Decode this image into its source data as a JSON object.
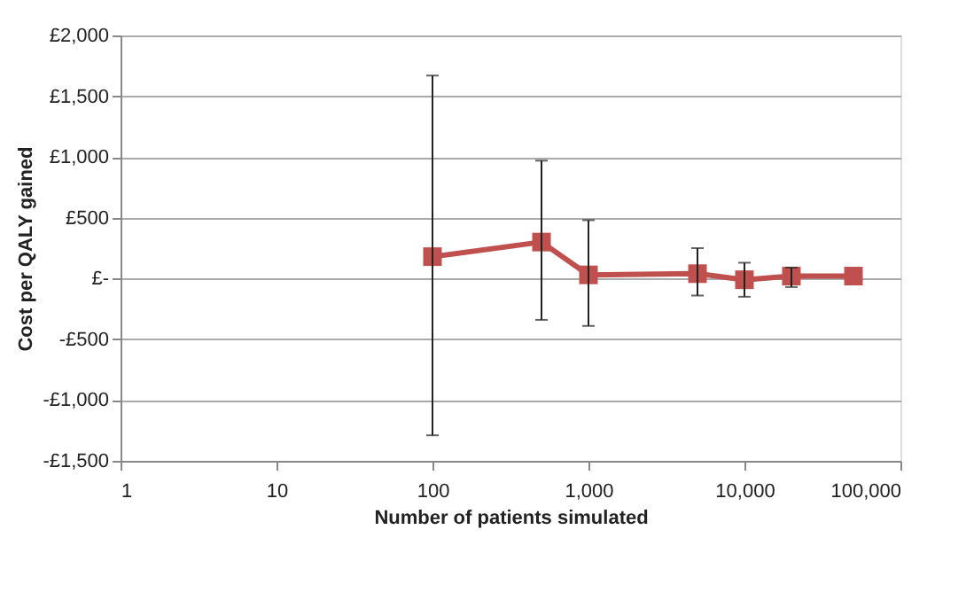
{
  "chart_data": {
    "type": "line",
    "xlabel": "Number of patients simulated",
    "ylabel": "Cost per QALY gained",
    "x": [
      100,
      500,
      1000,
      5000,
      10000,
      20000,
      50000
    ],
    "series": [
      {
        "color": "#c0504d",
        "values": [
          180,
          300,
          30,
          40,
          -10,
          20,
          20
        ],
        "errors": [
          [
            -1290,
            1670
          ],
          [
            -340,
            970
          ],
          [
            -390,
            480
          ],
          [
            -140,
            250
          ],
          [
            -150,
            130
          ],
          [
            -70,
            90
          ],
          null
        ]
      }
    ],
    "log": "x",
    "xlim": [
      1,
      100000
    ],
    "xticks": [
      1,
      10,
      100,
      {
        "value": 1000,
        "label": "1,000"
      },
      {
        "value": 10000,
        "label": "10,000"
      },
      {
        "value": 100000,
        "label": "100,000"
      }
    ],
    "ylim": [
      -1500,
      2000
    ],
    "yticks": [
      {
        "value": -1500,
        "label": "-£1,500"
      },
      {
        "value": -1000,
        "label": "-£1,000"
      },
      {
        "value": -500,
        "label": "-£500"
      },
      {
        "value": 0,
        "label": "£-"
      },
      {
        "value": 500,
        "label": "£500"
      },
      {
        "value": 1000,
        "label": "£1,000"
      },
      {
        "value": 1500,
        "label": "£1,500"
      },
      {
        "value": 2000,
        "label": "£2,000"
      }
    ],
    "grid": "y",
    "marker": "square",
    "line_style": "solid"
  }
}
